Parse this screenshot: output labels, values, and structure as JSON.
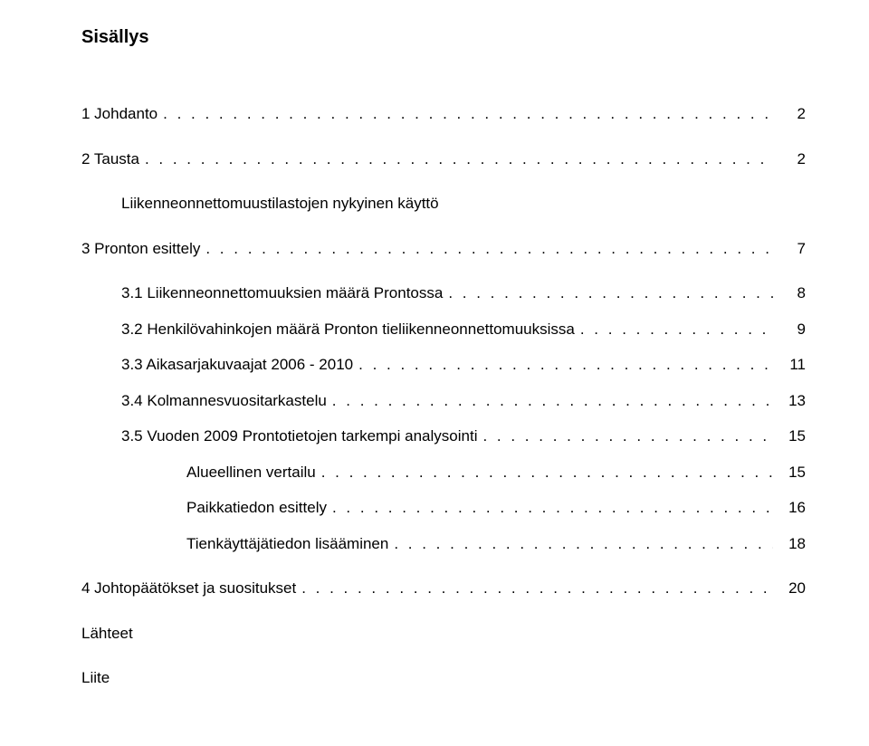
{
  "title": "Sisällys",
  "entries": [
    {
      "label": "1 Johdanto",
      "page": "2",
      "indent": 0,
      "gap": "large",
      "leader": true
    },
    {
      "label": "2 Tausta",
      "page": "2",
      "indent": 0,
      "gap": "large",
      "leader": true
    },
    {
      "label": "Liikenneonnettomuustilastojen nykyinen käyttö",
      "page": "",
      "indent": 1,
      "gap": "large",
      "leader": false
    },
    {
      "label": "3 Pronton esittely",
      "page": "7",
      "indent": 0,
      "gap": "large",
      "leader": true
    },
    {
      "label": "3.1 Liikenneonnettomuuksien määrä Prontossa",
      "page": "8",
      "indent": 1,
      "gap": "large",
      "leader": true
    },
    {
      "label": "3.2 Henkilövahinkojen määrä Pronton tieliikenneonnettomuuksissa",
      "page": "9",
      "indent": 1,
      "gap": "small",
      "leader": true
    },
    {
      "label": "3.3 Aikasarjakuvaajat 2006 - 2010",
      "page": "11",
      "indent": 1,
      "gap": "small",
      "leader": true
    },
    {
      "label": "3.4 Kolmannesvuositarkastelu",
      "page": "13",
      "indent": 1,
      "gap": "small",
      "leader": true
    },
    {
      "label": "3.5 Vuoden 2009 Prontotietojen tarkempi analysointi",
      "page": "15",
      "indent": 1,
      "gap": "small",
      "leader": true
    },
    {
      "label": "Alueellinen vertailu",
      "page": "15",
      "indent": 2,
      "gap": "small",
      "leader": true
    },
    {
      "label": "Paikkatiedon esittely",
      "page": "16",
      "indent": 2,
      "gap": "small",
      "leader": true
    },
    {
      "label": "Tienkäyttäjätiedon lisääminen",
      "page": "18",
      "indent": 2,
      "gap": "small",
      "leader": true
    },
    {
      "label": "4 Johtopäätökset ja suositukset",
      "page": "20",
      "indent": 0,
      "gap": "large",
      "leader": true
    },
    {
      "label": "Lähteet",
      "page": "",
      "indent": 0,
      "gap": "large",
      "leader": false
    },
    {
      "label": "Liite",
      "page": "",
      "indent": 0,
      "gap": "large",
      "leader": false
    }
  ]
}
